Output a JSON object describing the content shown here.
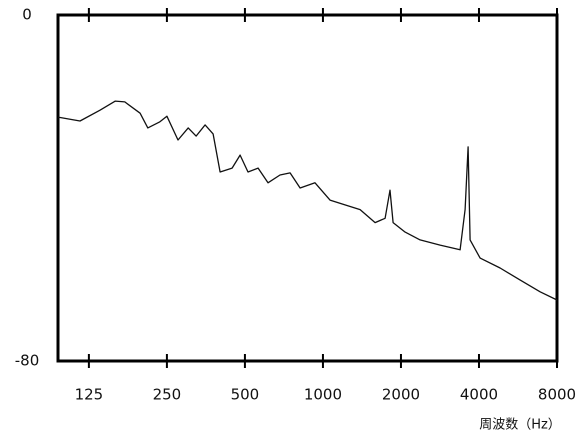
{
  "chart_data": {
    "type": "line",
    "x": [
      95,
      115.5,
      138,
      158,
      172,
      197,
      211,
      235,
      250,
      276,
      302,
      324,
      351,
      377,
      401,
      446,
      479,
      514,
      562,
      614,
      683,
      747,
      816,
      932,
      1065,
      1217,
      1391,
      1589,
      1737,
      1815,
      1865,
      2075,
      2370,
      2831,
      3382,
      3535,
      3630,
      3696,
      4040,
      4826,
      5767,
      6884,
      8000
    ],
    "series": [
      {
        "color": "#111111",
        "values": [
          -23.6,
          -24.5,
          -22,
          -19.9,
          -20.1,
          -22.7,
          -26.1,
          -24.7,
          -23.4,
          -28.9,
          -26.1,
          -28,
          -25.4,
          -27.5,
          -36.3,
          -35.4,
          -32.4,
          -36.3,
          -35.4,
          -38.8,
          -37,
          -36.5,
          -40,
          -38.8,
          -42.8,
          -43.9,
          -45,
          -48,
          -47,
          -40.5,
          -48,
          -50.2,
          -52,
          -53.2,
          -54.3,
          -45,
          -30.5,
          -52,
          -56.2,
          -58.5,
          -61.3,
          -64,
          -65.9
        ]
      }
    ],
    "xscale": "log",
    "xlim": [
      95,
      8000
    ],
    "xticks": [
      125,
      250,
      500,
      1000,
      2000,
      4000,
      8000
    ],
    "ylim": [
      -80,
      0
    ],
    "yticks": [
      0,
      -80
    ],
    "x_label": "周波数（Hz）"
  }
}
